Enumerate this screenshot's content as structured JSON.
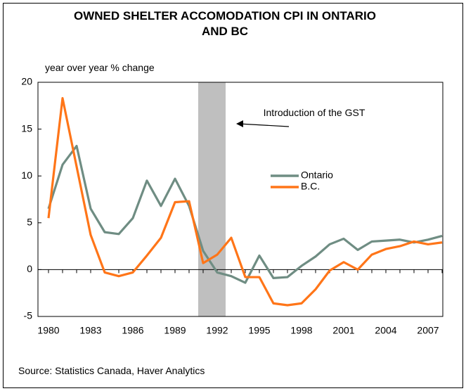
{
  "chart_data": {
    "type": "line",
    "title": "OWNED SHELTER ACCOMODATION CPI IN ONTARIO AND BC",
    "y_label": "year over year % change",
    "source": "Source: Statistics Canada, Haver Analytics",
    "annotation": "Introduction of the GST",
    "shade": [
      1990.65,
      1992.6
    ],
    "shade_color": "#bfbfbf",
    "x": [
      1980,
      1981,
      1982,
      1983,
      1984,
      1985,
      1986,
      1987,
      1988,
      1989,
      1990,
      1991,
      1992,
      1993,
      1994,
      1995,
      1996,
      1997,
      1998,
      1999,
      2000,
      2001,
      2002,
      2003,
      2004,
      2005,
      2006,
      2007,
      2008
    ],
    "series": [
      {
        "name": "Ontario",
        "color": "#6f8d83",
        "values": [
          6.5,
          11.2,
          13.2,
          6.5,
          4.0,
          3.8,
          5.5,
          9.5,
          6.8,
          9.7,
          6.8,
          2.0,
          -0.3,
          -0.7,
          -1.4,
          1.5,
          -0.9,
          -0.8,
          0.4,
          1.4,
          2.7,
          3.3,
          2.1,
          3.0,
          3.1,
          3.2,
          2.9,
          3.2,
          3.6
        ]
      },
      {
        "name": "B.C.",
        "color": "#ff7518",
        "values": [
          5.5,
          18.3,
          11.0,
          3.7,
          -0.3,
          -0.7,
          -0.3,
          1.5,
          3.4,
          7.2,
          7.3,
          0.7,
          1.6,
          3.4,
          -0.8,
          -0.8,
          -3.6,
          -3.8,
          -3.6,
          -2.1,
          -0.1,
          0.8,
          0.0,
          1.6,
          2.2,
          2.5,
          3.0,
          2.7,
          2.9
        ]
      }
    ],
    "xlim": [
      1979.25,
      2008.05
    ],
    "xticks": [
      1980,
      1983,
      1986,
      1989,
      1992,
      1995,
      1998,
      2001,
      2004,
      2007
    ],
    "ylim": [
      -5,
      20
    ],
    "yticks": [
      -5,
      0,
      5,
      10,
      15,
      20
    ]
  }
}
